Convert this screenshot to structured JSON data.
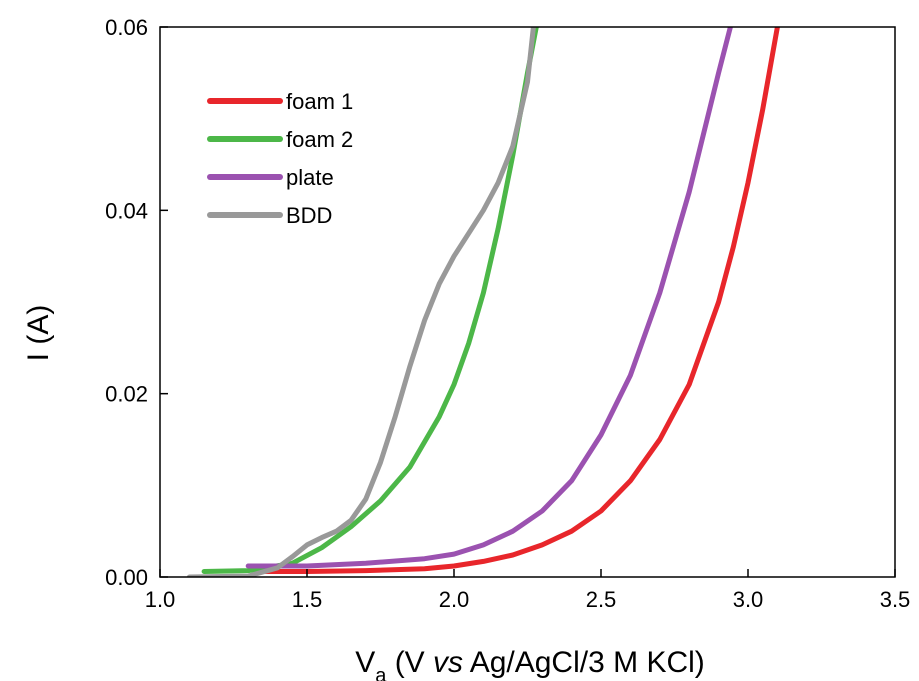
{
  "chart_data": {
    "type": "line",
    "title": "",
    "xlabel": {
      "prefix": "V",
      "subscript": "a",
      "text_before_italic": " (V ",
      "italic": "vs",
      "text_after_italic": " Ag/AgCl/3 M KCl)"
    },
    "ylabel": "I (A)",
    "xlim": [
      1.0,
      3.5
    ],
    "ylim": [
      0.0,
      0.06
    ],
    "xticks": [
      "1.0",
      "1.5",
      "2.0",
      "2.5",
      "3.0",
      "3.5"
    ],
    "yticks": [
      "0.00",
      "0.02",
      "0.04",
      "0.06"
    ],
    "legend_position": "top-left",
    "grid": false,
    "series": [
      {
        "name": "foam 1",
        "color": "#e8262b",
        "points": [
          [
            1.33,
            0.0006
          ],
          [
            1.5,
            0.0006
          ],
          [
            1.7,
            0.0007
          ],
          [
            1.9,
            0.0009
          ],
          [
            2.0,
            0.0012
          ],
          [
            2.1,
            0.0017
          ],
          [
            2.2,
            0.0024
          ],
          [
            2.3,
            0.0035
          ],
          [
            2.4,
            0.005
          ],
          [
            2.5,
            0.0072
          ],
          [
            2.6,
            0.0105
          ],
          [
            2.7,
            0.015
          ],
          [
            2.8,
            0.021
          ],
          [
            2.9,
            0.03
          ],
          [
            2.95,
            0.036
          ],
          [
            3.0,
            0.043
          ],
          [
            3.05,
            0.051
          ],
          [
            3.1,
            0.06
          ]
        ]
      },
      {
        "name": "foam 2",
        "color": "#4cb748",
        "points": [
          [
            1.15,
            0.0006
          ],
          [
            1.3,
            0.0007
          ],
          [
            1.45,
            0.0015
          ],
          [
            1.55,
            0.0032
          ],
          [
            1.65,
            0.0055
          ],
          [
            1.75,
            0.0083
          ],
          [
            1.85,
            0.012
          ],
          [
            1.95,
            0.0175
          ],
          [
            2.0,
            0.021
          ],
          [
            2.05,
            0.0255
          ],
          [
            2.1,
            0.031
          ],
          [
            2.15,
            0.038
          ],
          [
            2.2,
            0.046
          ],
          [
            2.25,
            0.055
          ],
          [
            2.28,
            0.06
          ]
        ]
      },
      {
        "name": "plate",
        "color": "#9b52b0",
        "points": [
          [
            1.3,
            0.0012
          ],
          [
            1.5,
            0.0012
          ],
          [
            1.7,
            0.0015
          ],
          [
            1.9,
            0.002
          ],
          [
            2.0,
            0.0025
          ],
          [
            2.1,
            0.0035
          ],
          [
            2.2,
            0.005
          ],
          [
            2.3,
            0.0072
          ],
          [
            2.4,
            0.0105
          ],
          [
            2.5,
            0.0155
          ],
          [
            2.6,
            0.022
          ],
          [
            2.7,
            0.031
          ],
          [
            2.8,
            0.042
          ],
          [
            2.85,
            0.0485
          ],
          [
            2.9,
            0.055
          ],
          [
            2.94,
            0.06
          ]
        ]
      },
      {
        "name": "BDD",
        "color": "#999999",
        "points": [
          [
            1.1,
            0.0
          ],
          [
            1.3,
            0.0001
          ],
          [
            1.4,
            0.001
          ],
          [
            1.45,
            0.0022
          ],
          [
            1.5,
            0.0035
          ],
          [
            1.55,
            0.0043
          ],
          [
            1.6,
            0.005
          ],
          [
            1.65,
            0.0062
          ],
          [
            1.7,
            0.0085
          ],
          [
            1.75,
            0.0125
          ],
          [
            1.8,
            0.0175
          ],
          [
            1.85,
            0.023
          ],
          [
            1.9,
            0.028
          ],
          [
            1.95,
            0.032
          ],
          [
            2.0,
            0.035
          ],
          [
            2.05,
            0.0375
          ],
          [
            2.1,
            0.04
          ],
          [
            2.15,
            0.043
          ],
          [
            2.2,
            0.047
          ],
          [
            2.25,
            0.054
          ],
          [
            2.27,
            0.06
          ]
        ]
      }
    ]
  }
}
